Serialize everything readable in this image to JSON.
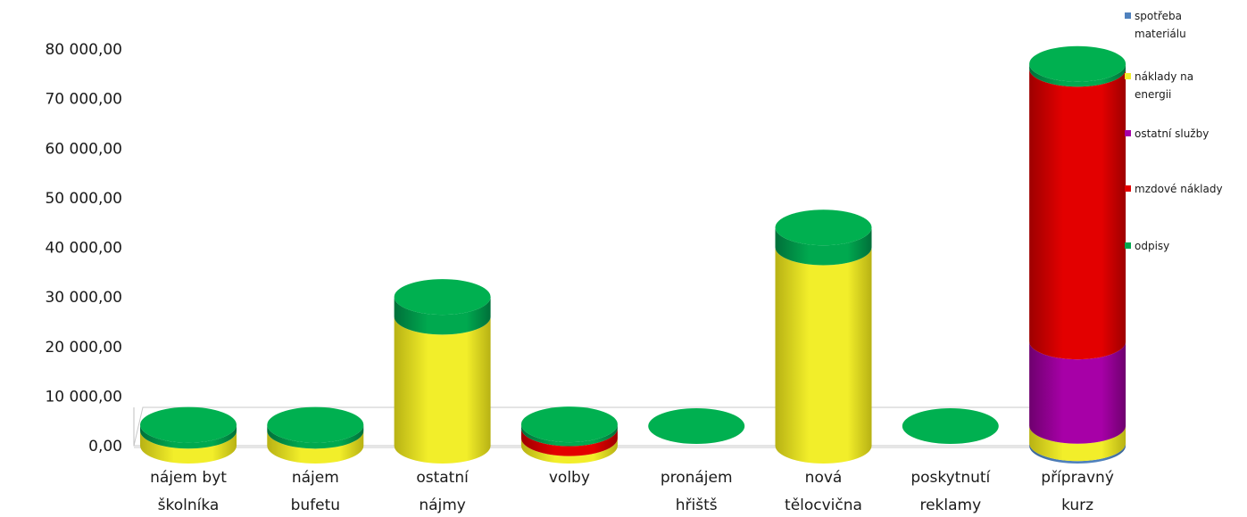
{
  "chart_data": {
    "type": "bar",
    "stacked": true,
    "style": "3d-cylinder",
    "categories": [
      [
        "nájem byt",
        "školníka"
      ],
      [
        "nájem",
        "bufetu"
      ],
      [
        "ostatní",
        "nájmy"
      ],
      [
        "volby"
      ],
      [
        "pronájem",
        "hřištš"
      ],
      [
        "nová",
        "tělocvična"
      ],
      [
        "poskytnutí",
        "reklamy"
      ],
      [
        "přípravný",
        "kurz"
      ]
    ],
    "ylim": [
      0,
      80000
    ],
    "yticks": [
      {
        "value": 0,
        "label": "0,00"
      },
      {
        "value": 10000,
        "label": "10 000,00"
      },
      {
        "value": 20000,
        "label": "20 000,00"
      },
      {
        "value": 30000,
        "label": "30 000,00"
      },
      {
        "value": 40000,
        "label": "40 000,00"
      },
      {
        "value": 50000,
        "label": "50 000,00"
      },
      {
        "value": 60000,
        "label": "60 000,00"
      },
      {
        "value": 70000,
        "label": "70 000,00"
      },
      {
        "value": 80000,
        "label": "80 000,00"
      }
    ],
    "legend_position": "right",
    "series": [
      {
        "name": [
          "spotřeba",
          "materiálu"
        ],
        "color": "#4f81bd",
        "side": "#3a6597",
        "top": "#6d9bd4",
        "values": [
          0,
          0,
          0,
          0,
          0,
          0,
          0,
          500
        ]
      },
      {
        "name": [
          "náklady na",
          "energii"
        ],
        "color": "#f2ee2a",
        "side": "#b8b214",
        "top": "#f7f466",
        "values": [
          3000,
          3000,
          26000,
          1500,
          0,
          40000,
          0,
          3500
        ]
      },
      {
        "name": [
          "ostatní služby"
        ],
        "color": "#a700a7",
        "side": "#6f006f",
        "top": "#c24ac2",
        "values": [
          0,
          0,
          0,
          0,
          0,
          0,
          0,
          17000
        ]
      },
      {
        "name": [
          "mzdové náklady"
        ],
        "color": "#e30000",
        "side": "#9e0000",
        "top": "#f04a4a",
        "values": [
          0,
          0,
          0,
          2000,
          0,
          0,
          0,
          55000
        ]
      },
      {
        "name": [
          "odpisy"
        ],
        "color": "#00a94f",
        "side": "#00703a",
        "top": "#00b050",
        "values": [
          1200,
          1200,
          4000,
          800,
          0,
          4000,
          0,
          1000
        ]
      }
    ]
  }
}
